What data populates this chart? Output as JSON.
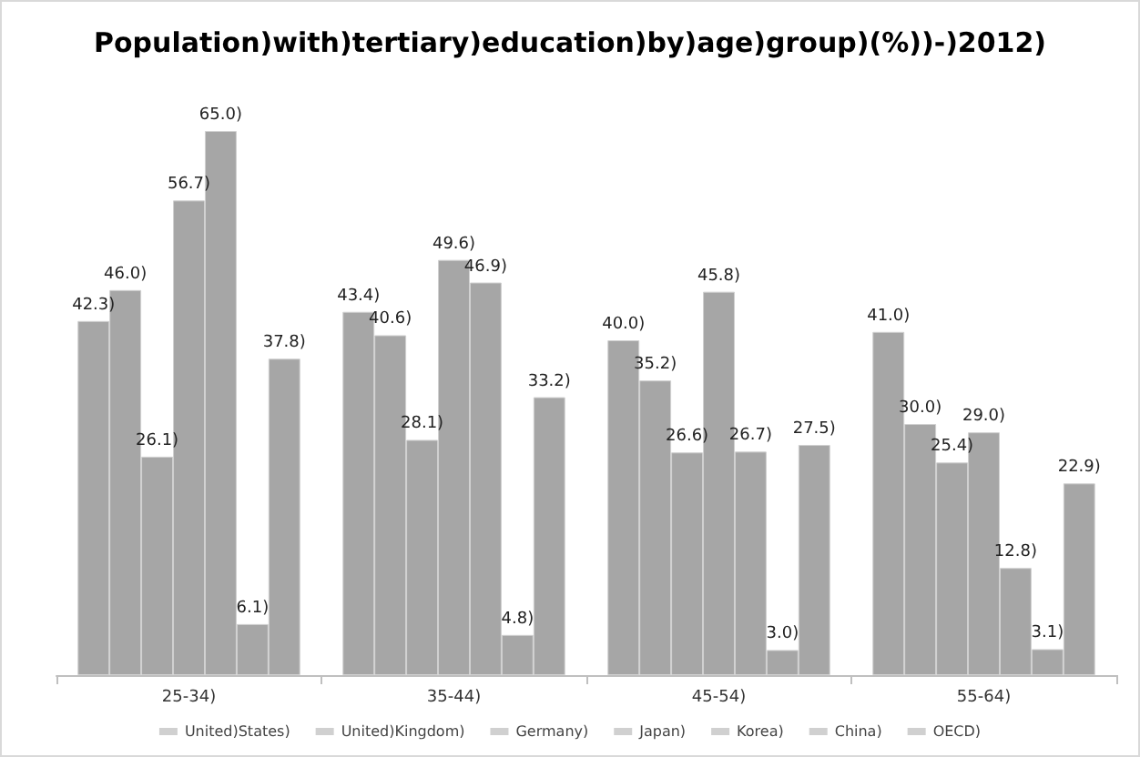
{
  "chart_data": {
    "type": "bar",
    "title": "Population)with)tertiary)education)by)age)group)(%))-)2012)",
    "categories": [
      "25-34)",
      "35-44)",
      "45-54)",
      "55-64)"
    ],
    "legend": "bottom",
    "tick_labels": "x",
    "series": [
      {
        "name": "United)States)",
        "color": "#a6a6a6",
        "values": [
          42.3,
          43.4,
          40.0,
          41.0
        ],
        "value_labels": [
          "42.3)",
          "43.4)",
          "40.0)",
          "41.0)"
        ]
      },
      {
        "name": "United)Kingdom)",
        "color": "#a6a6a6",
        "values": [
          46.0,
          40.6,
          35.2,
          30.0
        ],
        "value_labels": [
          "46.0)",
          "40.6)",
          "35.2)",
          "30.0)"
        ]
      },
      {
        "name": "Germany)",
        "color": "#a6a6a6",
        "values": [
          26.1,
          28.1,
          26.6,
          25.4
        ],
        "value_labels": [
          "26.1)",
          "28.1)",
          "26.6)",
          "25.4)"
        ]
      },
      {
        "name": "Japan)",
        "color": "#a6a6a6",
        "values": [
          56.7,
          49.6,
          45.8,
          29.0
        ],
        "value_labels": [
          "56.7)",
          "49.6)",
          "45.8)",
          "29.0)"
        ]
      },
      {
        "name": "Korea)",
        "color": "#a6a6a6",
        "values": [
          65.0,
          46.9,
          26.7,
          12.8
        ],
        "value_labels": [
          "65.0)",
          "46.9)",
          "26.7)",
          "12.8)"
        ]
      },
      {
        "name": "China)",
        "color": "#a6a6a6",
        "values": [
          6.1,
          4.8,
          3.0,
          3.1
        ],
        "value_labels": [
          "6.1)",
          "4.8)",
          "3.0)",
          "3.1)"
        ]
      },
      {
        "name": "OECD)",
        "color": "#a6a6a6",
        "values": [
          37.8,
          33.2,
          27.5,
          22.9
        ],
        "value_labels": [
          "37.8)",
          "33.2)",
          "27.5)",
          "22.9)"
        ]
      }
    ]
  }
}
